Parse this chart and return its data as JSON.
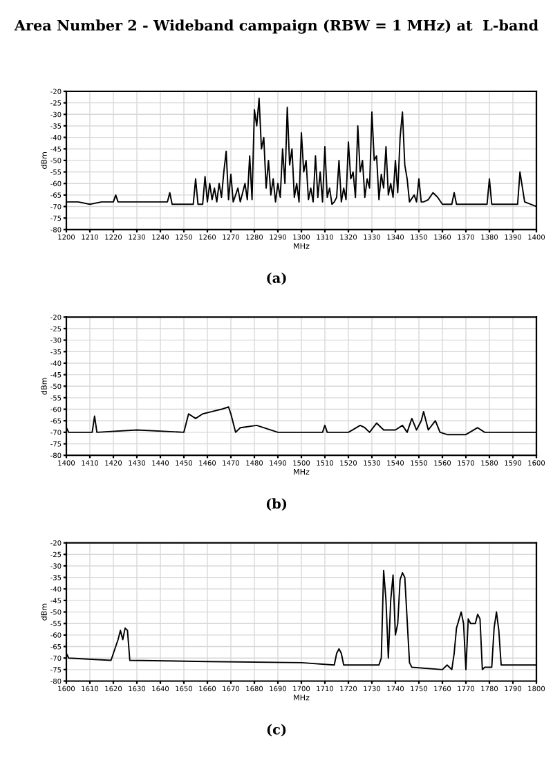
{
  "chart_data": [
    {
      "type": "line",
      "title": "Area Number 2 - Wideband campaign (RBW = 1 MHz) at  L-band",
      "xlabel": "MHz",
      "ylabel": "dBm",
      "annotations": [
        "(a)"
      ],
      "grid": true,
      "legend": false,
      "marker": "none",
      "line_style": "solid",
      "xlim": [
        1200,
        1400
      ],
      "xticks": [
        1200,
        1210,
        1220,
        1230,
        1240,
        1250,
        1260,
        1270,
        1280,
        1290,
        1300,
        1310,
        1320,
        1330,
        1340,
        1350,
        1360,
        1370,
        1380,
        1390,
        1400
      ],
      "ylim": [
        -80,
        -20
      ],
      "yticks": [
        -80,
        -75,
        -70,
        -65,
        -60,
        -55,
        -50,
        -45,
        -40,
        -35,
        -30,
        -25,
        -20
      ],
      "series": [
        {
          "color": "#000000",
          "x": [
            1200,
            1205,
            1210,
            1215,
            1220,
            1221,
            1222,
            1230,
            1240,
            1243,
            1244,
            1245,
            1254,
            1255,
            1256,
            1258,
            1259,
            1260,
            1261,
            1262,
            1263,
            1264,
            1265,
            1266,
            1267,
            1268,
            1269,
            1270,
            1271,
            1273,
            1274,
            1276,
            1277,
            1278,
            1279,
            1280,
            1281,
            1282,
            1283,
            1284,
            1285,
            1286,
            1287,
            1288,
            1289,
            1290,
            1291,
            1292,
            1293,
            1294,
            1295,
            1296,
            1297,
            1298,
            1299,
            1300,
            1301,
            1302,
            1303,
            1304,
            1305,
            1306,
            1307,
            1308,
            1309,
            1310,
            1311,
            1312,
            1313,
            1314,
            1315,
            1316,
            1317,
            1318,
            1319,
            1320,
            1321,
            1322,
            1323,
            1324,
            1325,
            1326,
            1327,
            1328,
            1329,
            1330,
            1331,
            1332,
            1333,
            1334,
            1335,
            1336,
            1337,
            1338,
            1339,
            1340,
            1341,
            1342,
            1343,
            1344,
            1345,
            1346,
            1348,
            1349,
            1350,
            1351,
            1352,
            1354,
            1356,
            1358,
            1360,
            1364,
            1365,
            1366,
            1370,
            1375,
            1379,
            1380,
            1381,
            1385,
            1390,
            1392,
            1393,
            1395,
            1400
          ],
          "values": [
            -68,
            -68,
            -69,
            -68,
            -68,
            -65,
            -68,
            -68,
            -68,
            -68,
            -64,
            -69,
            -69,
            -58,
            -69,
            -69,
            -57,
            -68,
            -60,
            -67,
            -62,
            -68,
            -60,
            -66,
            -55,
            -46,
            -67,
            -56,
            -68,
            -62,
            -68,
            -60,
            -67,
            -48,
            -67,
            -28,
            -35,
            -23,
            -45,
            -40,
            -62,
            -50,
            -65,
            -58,
            -68,
            -60,
            -66,
            -45,
            -60,
            -27,
            -52,
            -45,
            -66,
            -60,
            -68,
            -38,
            -55,
            -50,
            -67,
            -62,
            -68,
            -48,
            -66,
            -55,
            -68,
            -44,
            -66,
            -62,
            -69,
            -68,
            -66,
            -50,
            -68,
            -62,
            -67,
            -42,
            -58,
            -55,
            -66,
            -35,
            -55,
            -50,
            -66,
            -58,
            -62,
            -29,
            -50,
            -48,
            -67,
            -56,
            -62,
            -44,
            -65,
            -60,
            -66,
            -50,
            -64,
            -40,
            -29,
            -52,
            -58,
            -68,
            -65,
            -68,
            -58,
            -68,
            -68,
            -67,
            -64,
            -66,
            -69,
            -69,
            -64,
            -69,
            -69,
            -69,
            -69,
            -58,
            -69,
            -69,
            -69,
            -69,
            -55,
            -68,
            -70
          ]
        }
      ]
    },
    {
      "type": "line",
      "xlabel": "MHz",
      "ylabel": "dBm",
      "annotations": [
        "(b)"
      ],
      "grid": true,
      "legend": false,
      "marker": "none",
      "line_style": "solid",
      "xlim": [
        1400,
        1600
      ],
      "xticks": [
        1400,
        1410,
        1420,
        1430,
        1440,
        1450,
        1460,
        1470,
        1480,
        1490,
        1500,
        1510,
        1520,
        1530,
        1540,
        1550,
        1560,
        1570,
        1580,
        1590,
        1600
      ],
      "ylim": [
        -80,
        -20
      ],
      "yticks": [
        -80,
        -75,
        -70,
        -65,
        -60,
        -55,
        -50,
        -45,
        -40,
        -35,
        -30,
        -25,
        -20
      ],
      "series": [
        {
          "color": "#000000",
          "x": [
            1400,
            1401,
            1411,
            1412,
            1413,
            1430,
            1450,
            1452,
            1455,
            1458,
            1462,
            1466,
            1469,
            1470,
            1472,
            1474,
            1481,
            1490,
            1509,
            1510,
            1511,
            1520,
            1525,
            1527,
            1529,
            1532,
            1535,
            1540,
            1543,
            1545,
            1547,
            1549,
            1551,
            1552,
            1554,
            1557,
            1559,
            1562,
            1570,
            1575,
            1578,
            1590,
            1600
          ],
          "values": [
            -68,
            -70,
            -70,
            -63,
            -70,
            -69,
            -70,
            -62,
            -64,
            -62,
            -61,
            -60,
            -59,
            -62,
            -70,
            -68,
            -67,
            -70,
            -70,
            -67,
            -70,
            -70,
            -67,
            -68,
            -70,
            -66,
            -69,
            -69,
            -67,
            -70,
            -64,
            -69,
            -65,
            -61,
            -69,
            -65,
            -70,
            -71,
            -71,
            -68,
            -70,
            -70,
            -70
          ]
        }
      ]
    },
    {
      "type": "line",
      "xlabel": "MHz",
      "ylabel": "dBm",
      "annotations": [
        "(c)"
      ],
      "grid": true,
      "legend": false,
      "marker": "none",
      "line_style": "solid",
      "xlim": [
        1600,
        1800
      ],
      "xticks": [
        1600,
        1610,
        1620,
        1630,
        1640,
        1650,
        1660,
        1670,
        1680,
        1690,
        1700,
        1710,
        1720,
        1730,
        1740,
        1750,
        1760,
        1770,
        1780,
        1790,
        1800
      ],
      "ylim": [
        -80,
        -20
      ],
      "yticks": [
        -80,
        -75,
        -70,
        -65,
        -60,
        -55,
        -50,
        -45,
        -40,
        -35,
        -30,
        -25,
        -20
      ],
      "series": [
        {
          "color": "#000000",
          "x": [
            1600,
            1601,
            1619,
            1620,
            1622,
            1623,
            1624,
            1625,
            1626,
            1627,
            1660,
            1700,
            1714,
            1715,
            1716,
            1717,
            1718,
            1733,
            1734,
            1735,
            1736,
            1737,
            1738,
            1739,
            1740,
            1741,
            1742,
            1743,
            1744,
            1746,
            1747,
            1760,
            1762,
            1764,
            1765,
            1766,
            1768,
            1769,
            1770,
            1771,
            1772,
            1774,
            1775,
            1776,
            1777,
            1778,
            1781,
            1782,
            1783,
            1784,
            1785,
            1800
          ],
          "values": [
            -68,
            -70,
            -71,
            -68,
            -62,
            -58,
            -62,
            -57,
            -58,
            -71,
            -71.5,
            -72,
            -73,
            -68,
            -66,
            -68,
            -73,
            -73,
            -70,
            -32,
            -45,
            -70,
            -45,
            -34,
            -60,
            -55,
            -36,
            -33,
            -35,
            -72,
            -74,
            -75,
            -73,
            -75,
            -68,
            -57,
            -50,
            -55,
            -75,
            -53,
            -55,
            -55,
            -51,
            -53,
            -75,
            -74,
            -74,
            -57,
            -50,
            -58,
            -73,
            -73
          ]
        }
      ]
    }
  ]
}
